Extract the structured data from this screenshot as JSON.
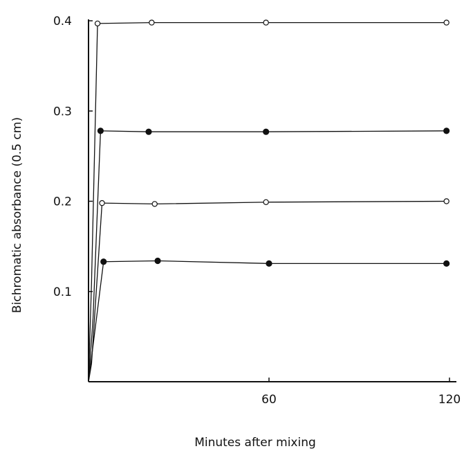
{
  "chart_data": {
    "type": "line",
    "title": "",
    "xlabel": "Minutes after mixing",
    "ylabel": "Bichromatic absorbance (0.5 cm)",
    "xlim": [
      0,
      125
    ],
    "ylim": [
      0,
      0.4
    ],
    "x_ticks": [
      {
        "value": 60,
        "label": "60"
      },
      {
        "value": 120,
        "label": "120"
      }
    ],
    "y_ticks": [
      {
        "value": 0.1,
        "label": "0.1"
      },
      {
        "value": 0.2,
        "label": "0.2"
      },
      {
        "value": 0.3,
        "label": "0.3"
      },
      {
        "value": 0.4,
        "label": "0.4"
      }
    ],
    "grid": false,
    "series": [
      {
        "marker": "open-circle",
        "points": [
          [
            3,
            0.397
          ],
          [
            21,
            0.398
          ],
          [
            59,
            0.398
          ],
          [
            119,
            0.398
          ]
        ],
        "initial_rise": [
          [
            0,
            0
          ],
          [
            1,
            0.11
          ],
          [
            3,
            0.397
          ]
        ]
      },
      {
        "marker": "filled-circle",
        "points": [
          [
            4,
            0.278
          ],
          [
            20,
            0.277
          ],
          [
            59,
            0.277
          ],
          [
            119,
            0.278
          ]
        ],
        "initial_rise": [
          [
            0,
            0
          ],
          [
            1.5,
            0.07
          ],
          [
            4,
            0.278
          ]
        ]
      },
      {
        "marker": "open-circle",
        "points": [
          [
            4.5,
            0.198
          ],
          [
            22,
            0.197
          ],
          [
            59,
            0.199
          ],
          [
            119,
            0.2
          ]
        ],
        "initial_rise": [
          [
            0,
            0
          ],
          [
            1,
            0.02
          ],
          [
            4.5,
            0.198
          ]
        ]
      },
      {
        "marker": "filled-circle",
        "points": [
          [
            5,
            0.133
          ],
          [
            23,
            0.134
          ],
          [
            60,
            0.131
          ],
          [
            119,
            0.131
          ]
        ],
        "initial_rise": [
          [
            0,
            0
          ],
          [
            5,
            0.133
          ]
        ]
      }
    ],
    "colors": {
      "ink": "#111111",
      "background": "#ffffff"
    }
  }
}
